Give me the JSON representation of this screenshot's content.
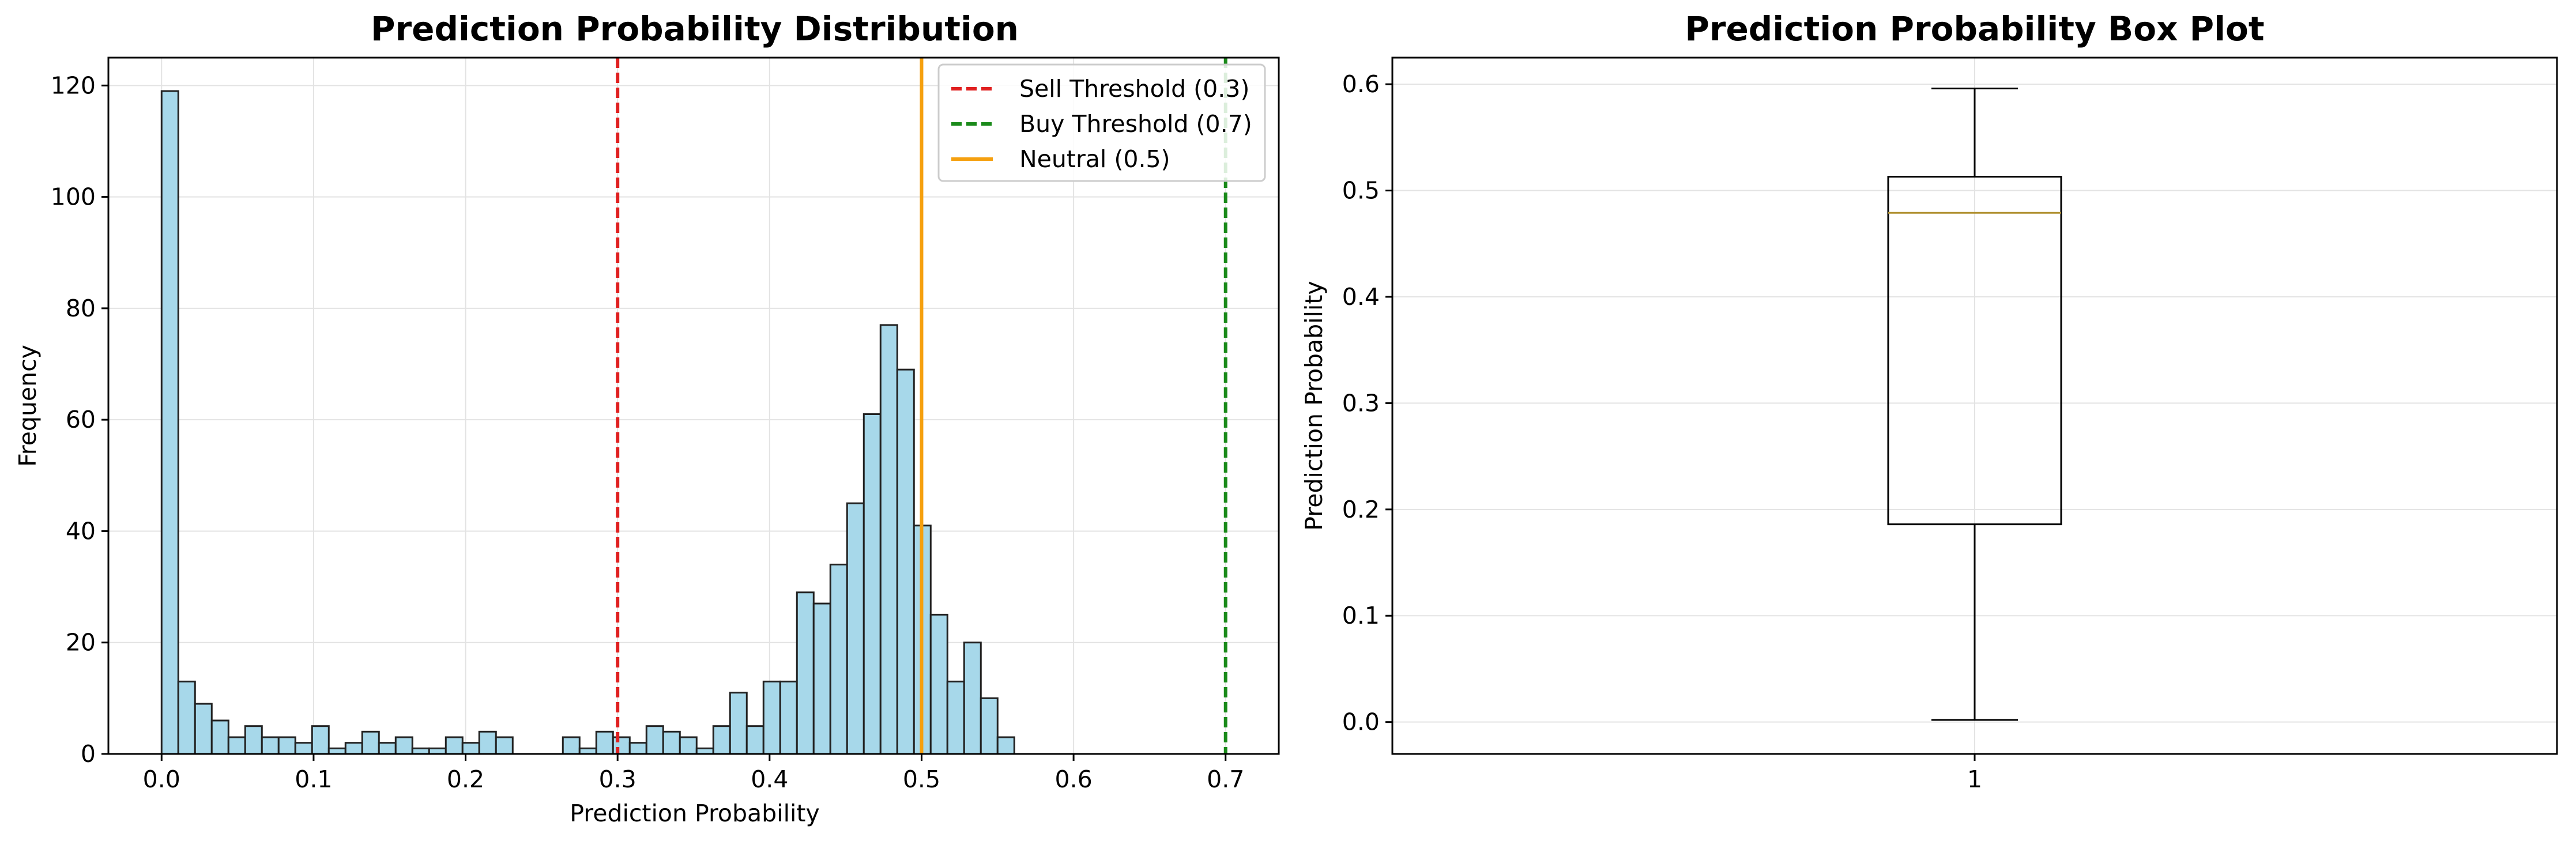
{
  "chart_data": [
    {
      "type": "histogram",
      "title": "Prediction Probability Distribution",
      "xlabel": "Prediction Probability",
      "ylabel": "Frequency",
      "xlim": [
        -0.035,
        0.735
      ],
      "ylim": [
        0,
        125
      ],
      "xticks": [
        0.0,
        0.1,
        0.2,
        0.3,
        0.4,
        0.5,
        0.6,
        0.7
      ],
      "xtick_labels": [
        "0.0",
        "0.1",
        "0.2",
        "0.3",
        "0.4",
        "0.5",
        "0.6",
        "0.7"
      ],
      "yticks": [
        0,
        20,
        40,
        60,
        80,
        100,
        120
      ],
      "ytick_labels": [
        "0",
        "20",
        "40",
        "60",
        "80",
        "100",
        "120"
      ],
      "grid": true,
      "bar_color": "#a7d8ea",
      "bin_start": 0.0,
      "bin_width": 0.011,
      "counts": [
        119,
        13,
        9,
        6,
        3,
        5,
        3,
        3,
        2,
        5,
        1,
        2,
        4,
        2,
        3,
        1,
        1,
        3,
        2,
        4,
        3,
        0,
        0,
        0,
        3,
        1,
        4,
        3,
        2,
        5,
        4,
        3,
        1,
        5,
        11,
        5,
        13,
        13,
        29,
        27,
        34,
        45,
        61,
        77,
        69,
        41,
        25,
        13,
        20,
        10,
        3
      ],
      "legend_position": "upper right",
      "lines": [
        {
          "label": "Sell Threshold (0.3)",
          "x": 0.3,
          "color": "#e02020",
          "style": "dashed"
        },
        {
          "label": "Buy Threshold (0.7)",
          "x": 0.7,
          "color": "#1a8a1a",
          "style": "dashed"
        },
        {
          "label": "Neutral (0.5)",
          "x": 0.5,
          "color": "#f5a00f",
          "style": "solid"
        }
      ]
    },
    {
      "type": "box",
      "title": "Prediction Probability Box Plot",
      "ylabel": "Prediction Probability",
      "categories": [
        "1"
      ],
      "ylim": [
        -0.03,
        0.625
      ],
      "yticks": [
        0.0,
        0.1,
        0.2,
        0.3,
        0.4,
        0.5,
        0.6
      ],
      "ytick_labels": [
        "0.0",
        "0.1",
        "0.2",
        "0.3",
        "0.4",
        "0.5",
        "0.6"
      ],
      "grid": true,
      "median_color": "#b09030",
      "box": {
        "whisker_low": 0.002,
        "q1": 0.186,
        "median": 0.479,
        "q3": 0.513,
        "whisker_high": 0.596
      }
    }
  ]
}
